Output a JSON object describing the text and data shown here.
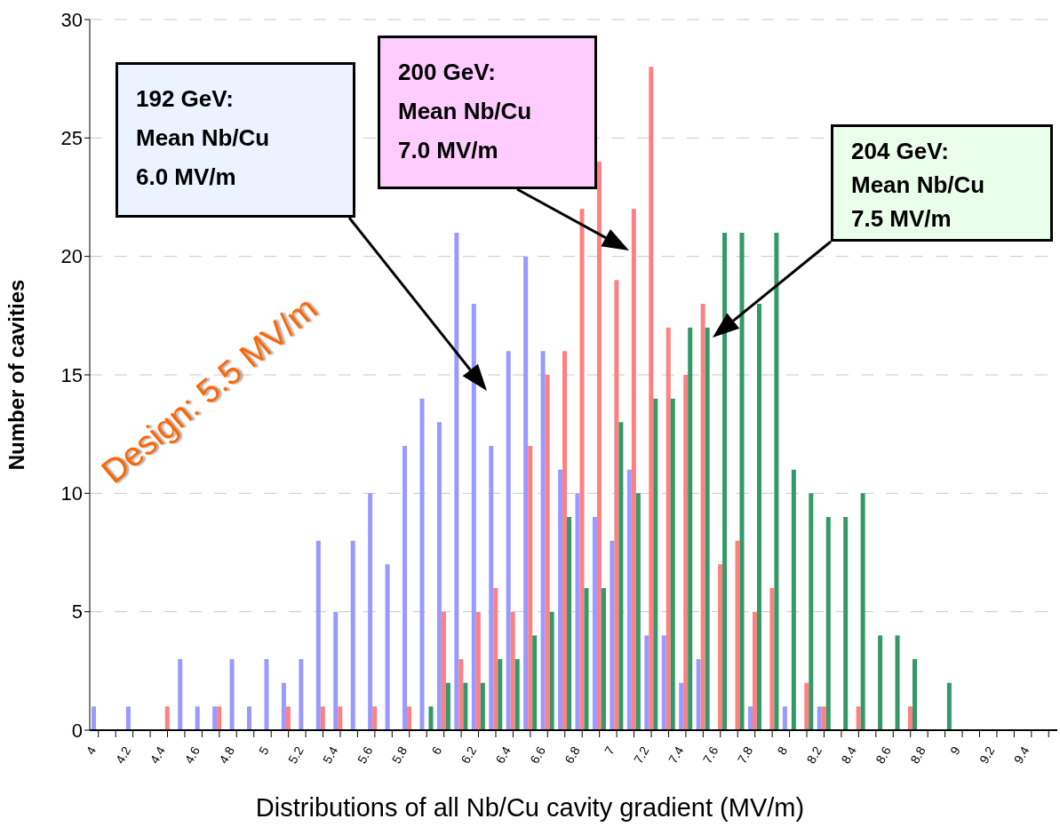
{
  "chart_data": {
    "type": "bar",
    "xlabel": "Distributions of all Nb/Cu cavity gradient (MV/m)",
    "ylabel": "Number of cavities",
    "categories": [
      "4",
      null,
      "4.2",
      null,
      "4.4",
      null,
      "4.6",
      null,
      "4.8",
      null,
      "5",
      null,
      "5.2",
      null,
      "5.4",
      null,
      "5.6",
      null,
      "5.8",
      null,
      "6",
      null,
      "6.2",
      null,
      "6.4",
      null,
      "6.6",
      null,
      "6.8",
      null,
      "7",
      null,
      "7.2",
      null,
      "7.4",
      null,
      "7.6",
      null,
      "7.8",
      null,
      "8",
      null,
      "8.2",
      null,
      "8.4",
      null,
      "8.6",
      null,
      "8.8",
      null,
      "9",
      null,
      "9.2",
      null,
      "9.4",
      null
    ],
    "series": [
      {
        "color": "#9999ff",
        "values": [
          1,
          0,
          1,
          0,
          0,
          3,
          1,
          1,
          3,
          1,
          3,
          2,
          3,
          8,
          5,
          8,
          10,
          7,
          12,
          14,
          13,
          21,
          18,
          12,
          16,
          20,
          16,
          11,
          10,
          9,
          8,
          11,
          4,
          4,
          2,
          3,
          0,
          0,
          1,
          0,
          1,
          0,
          1,
          0,
          0,
          0,
          0,
          0,
          0,
          0,
          0,
          0,
          0,
          0,
          0,
          0
        ]
      },
      {
        "color": "#ff8080",
        "values": [
          0,
          0,
          0,
          0,
          1,
          0,
          0,
          1,
          0,
          0,
          0,
          1,
          0,
          1,
          1,
          0,
          1,
          0,
          1,
          0,
          5,
          3,
          5,
          6,
          5,
          12,
          15,
          16,
          22,
          24,
          19,
          22,
          28,
          17,
          15,
          18,
          7,
          8,
          5,
          6,
          0,
          2,
          1,
          0,
          1,
          0,
          0,
          1,
          0,
          0,
          0,
          0,
          0,
          0,
          0,
          0
        ]
      },
      {
        "color": "#339966",
        "values": [
          0,
          0,
          0,
          0,
          0,
          0,
          0,
          0,
          0,
          0,
          0,
          0,
          0,
          0,
          0,
          0,
          0,
          0,
          0,
          1,
          2,
          2,
          2,
          3,
          3,
          4,
          5,
          9,
          6,
          6,
          13,
          10,
          14,
          14,
          17,
          17,
          21,
          21,
          18,
          21,
          11,
          10,
          9,
          9,
          10,
          4,
          4,
          3,
          0,
          2,
          0,
          0,
          0,
          0,
          0,
          0
        ]
      }
    ],
    "ylim": [
      0,
      30
    ],
    "yticks": [
      0,
      5,
      10,
      15,
      20,
      25,
      30
    ],
    "grid": "y",
    "legend": false,
    "annotations": [
      "192 GeV:\nMean Nb/Cu\n6.0 MV/m",
      "200 GeV:\nMean Nb/Cu\n7.0 MV/m",
      "204 GeV:\nMean Nb/Cu\n7.5 MV/m",
      "Design: 5.5 MV/m"
    ]
  }
}
